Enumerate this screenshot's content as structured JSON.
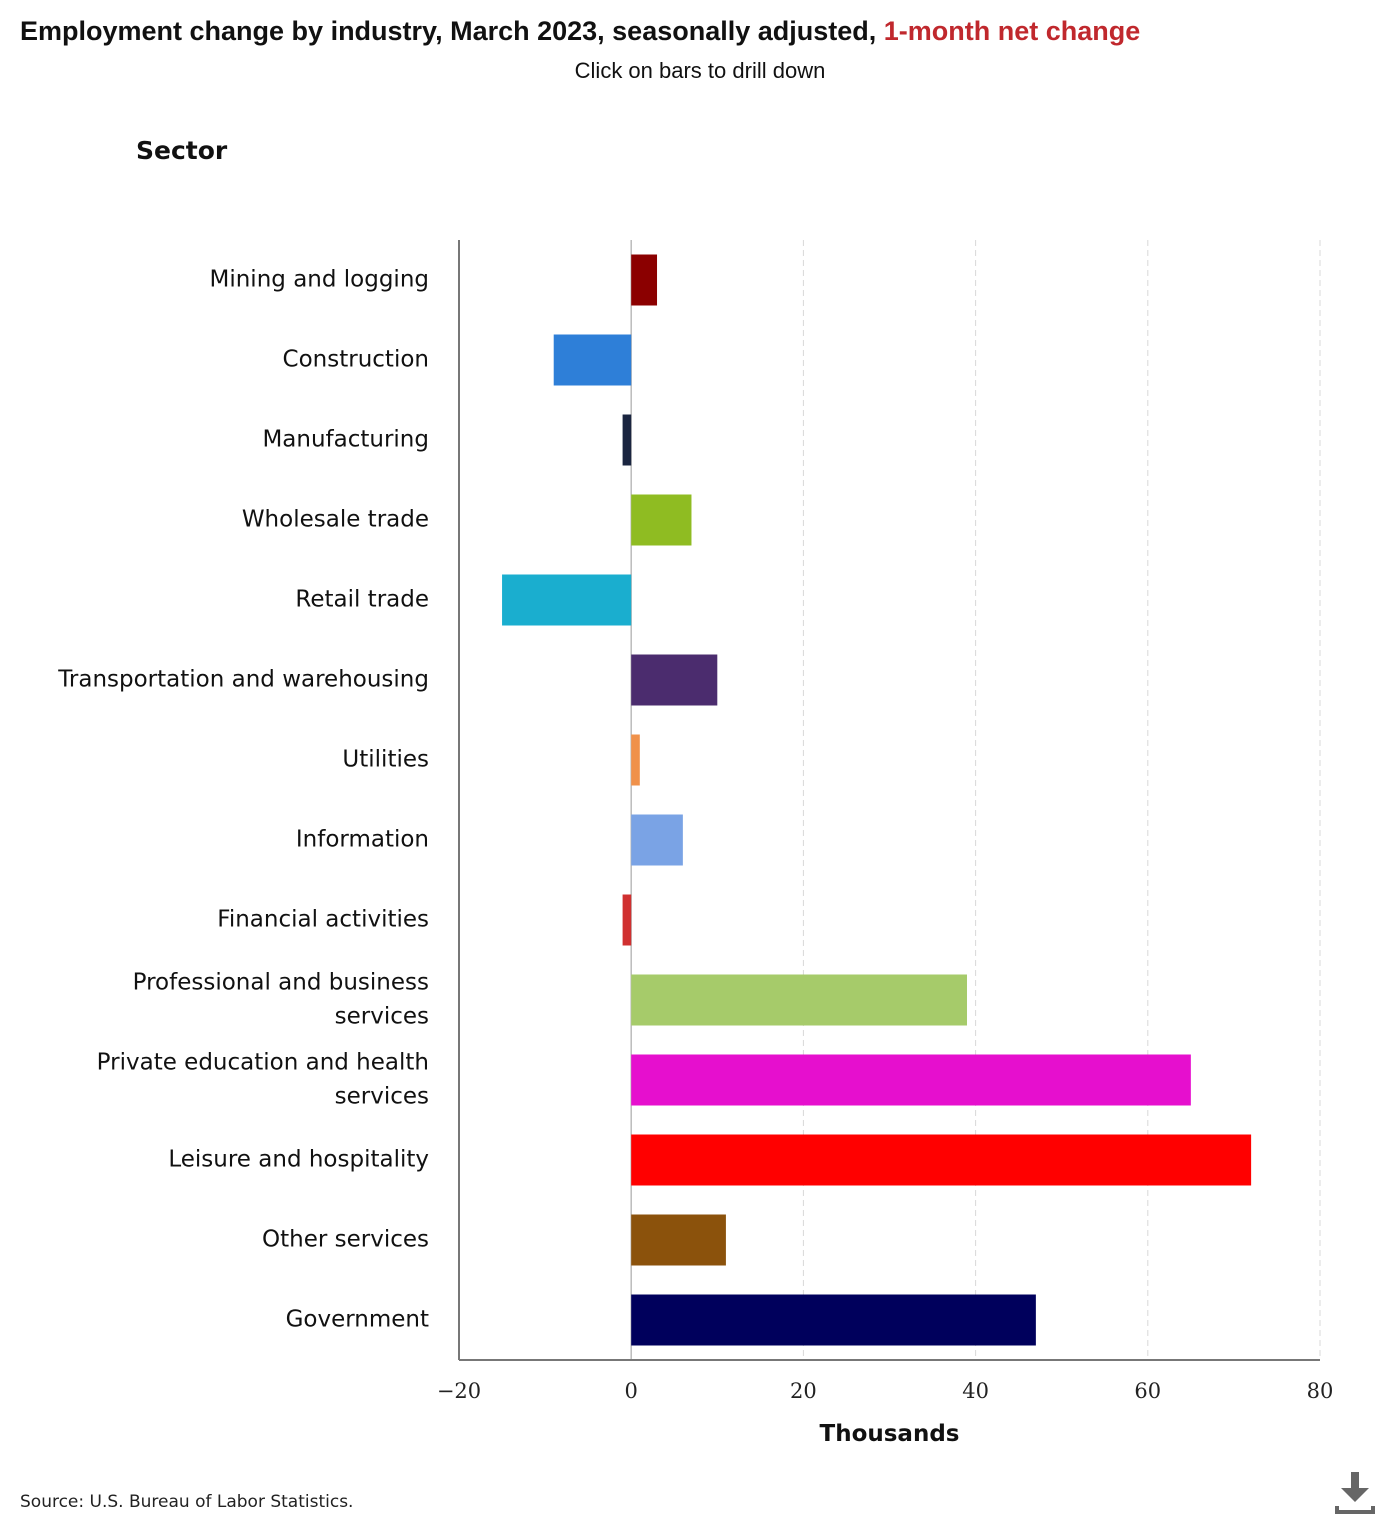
{
  "title": {
    "main": "Employment change by industry, March 2023, seasonally adjusted, ",
    "highlight": "1-month net change",
    "highlight_color": "#c0282d"
  },
  "subtitle": "Click on bars to drill down",
  "sector_label": "Sector",
  "source": "Source: U.S. Bureau of Labor Statistics.",
  "download_icon": "download-icon",
  "chart_data": {
    "type": "bar",
    "orientation": "horizontal",
    "title": "Employment change by industry, March 2023, seasonally adjusted, 1-month net change",
    "ylabel": "Sector",
    "xlabel": "Thousands",
    "xlim": [
      -20,
      80
    ],
    "xticks": [
      -20,
      0,
      20,
      40,
      60,
      80
    ],
    "xtick_labels": [
      "−20",
      "0",
      "20",
      "40",
      "60",
      "80"
    ],
    "grid": "vertical dashed",
    "categories": [
      "Mining and logging",
      "Construction",
      "Manufacturing",
      "Wholesale trade",
      "Retail trade",
      "Transportation and warehousing",
      "Utilities",
      "Information",
      "Financial activities",
      "Professional and business services",
      "Private education and health services",
      "Leisure and hospitality",
      "Other services",
      "Government"
    ],
    "values": [
      3,
      -9,
      -1,
      7,
      -15,
      10,
      1,
      6,
      -1,
      39,
      65,
      72,
      11,
      47
    ],
    "colors": [
      "#8b0000",
      "#2e7fd8",
      "#1a2540",
      "#8fbc22",
      "#1aaecf",
      "#4b2c6e",
      "#f0914a",
      "#7aa3e5",
      "#d03030",
      "#a6cb6a",
      "#e60fce",
      "#ff0000",
      "#8b520c",
      "#00005c"
    ]
  }
}
